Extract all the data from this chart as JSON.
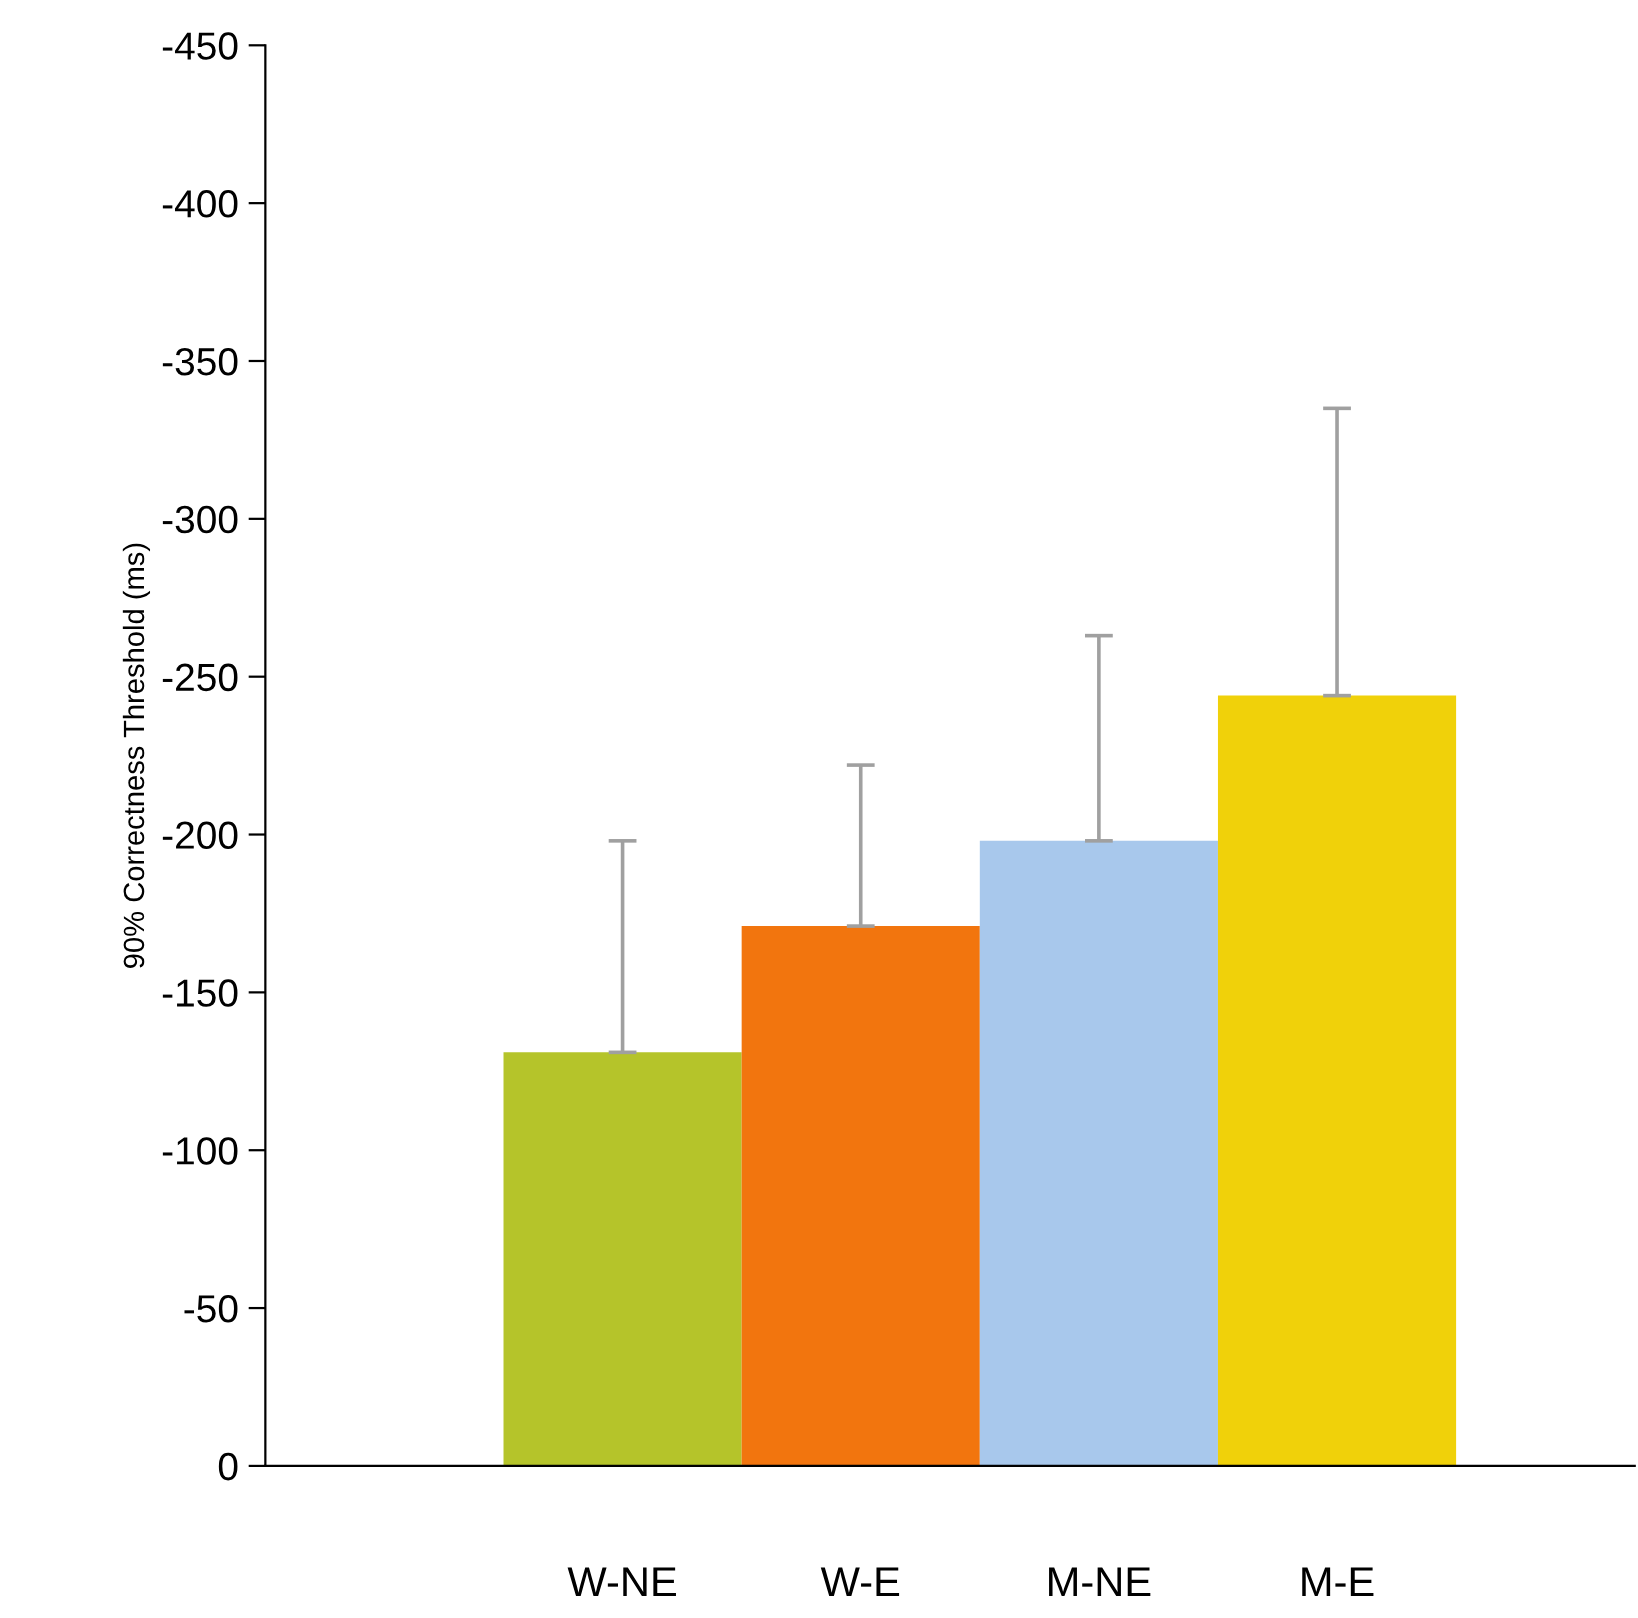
{
  "chart_data": {
    "type": "bar",
    "ylabel": "90% Correctness Threshold (ms)",
    "categories": [
      "W-NE",
      "W-E",
      "M-NE",
      "M-E"
    ],
    "values": [
      -131,
      -171,
      -198,
      -244
    ],
    "colors": [
      "#b5c42a",
      "#f2750e",
      "#a8c8ec",
      "#f0d10a"
    ],
    "errors": [
      [
        -198,
        -131
      ],
      [
        -222,
        -171
      ],
      [
        -263,
        -198
      ],
      [
        -335,
        -244
      ]
    ],
    "ylim": [
      0,
      -450
    ],
    "yticks": [
      0,
      -50,
      -100,
      -150,
      -200,
      -250,
      -300,
      -350,
      -400,
      -450
    ],
    "grid": false,
    "legend": false
  }
}
